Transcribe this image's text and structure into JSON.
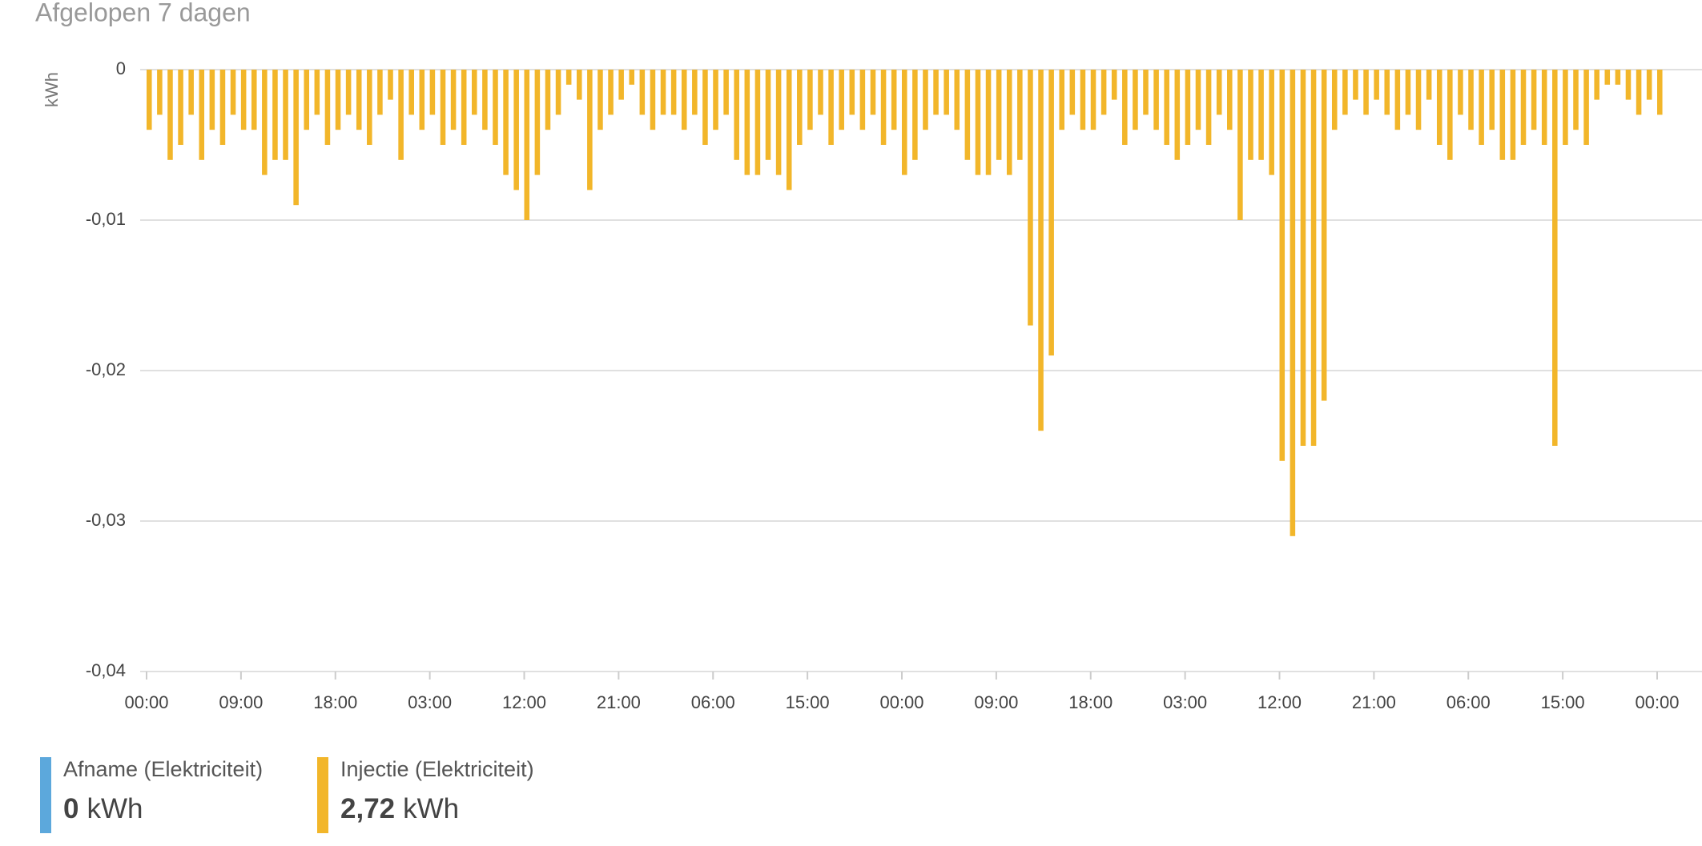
{
  "chart_data": {
    "type": "bar",
    "title": "Afgelopen 7 dagen",
    "y_label": "kWh",
    "ylim": [
      -0.04,
      0
    ],
    "yticks": [
      {
        "value": 0,
        "label": "0"
      },
      {
        "value": -0.01,
        "label": "-0,01"
      },
      {
        "value": -0.02,
        "label": "-0,02"
      },
      {
        "value": -0.03,
        "label": "-0,03"
      },
      {
        "value": -0.04,
        "label": "-0,04"
      }
    ],
    "grid": true,
    "categories": [
      "00:00",
      null,
      null,
      null,
      null,
      null,
      null,
      null,
      null,
      "09:00",
      null,
      null,
      null,
      null,
      null,
      null,
      null,
      null,
      "18:00",
      null,
      null,
      null,
      null,
      null,
      null,
      null,
      null,
      "03:00",
      null,
      null,
      null,
      null,
      null,
      null,
      null,
      null,
      "12:00",
      null,
      null,
      null,
      null,
      null,
      null,
      null,
      null,
      "21:00",
      null,
      null,
      null,
      null,
      null,
      null,
      null,
      null,
      "06:00",
      null,
      null,
      null,
      null,
      null,
      null,
      null,
      null,
      "15:00",
      null,
      null,
      null,
      null,
      null,
      null,
      null,
      null,
      "00:00",
      null,
      null,
      null,
      null,
      null,
      null,
      null,
      null,
      "09:00",
      null,
      null,
      null,
      null,
      null,
      null,
      null,
      null,
      "18:00",
      null,
      null,
      null,
      null,
      null,
      null,
      null,
      null,
      "03:00",
      null,
      null,
      null,
      null,
      null,
      null,
      null,
      null,
      "12:00",
      null,
      null,
      null,
      null,
      null,
      null,
      null,
      null,
      "21:00",
      null,
      null,
      null,
      null,
      null,
      null,
      null,
      null,
      "06:00",
      null,
      null,
      null,
      null,
      null,
      null,
      null,
      null,
      "15:00",
      null,
      null,
      null,
      null,
      null,
      null,
      null,
      null,
      "00:00"
    ],
    "series": [
      {
        "name": "Afname (Elektriciteit)",
        "color": "#5ca8dc",
        "total": 0,
        "unit": "kWh"
      },
      {
        "name": "Injectie (Elektriciteit)",
        "color": "#f2b62a",
        "total": {
          "value": 2.72,
          "label": "2,72"
        },
        "unit": "kWh",
        "values": [
          -0.004,
          -0.003,
          -0.006,
          -0.005,
          -0.003,
          -0.006,
          -0.004,
          -0.005,
          -0.003,
          -0.004,
          -0.004,
          -0.007,
          -0.006,
          -0.006,
          -0.009,
          -0.004,
          -0.003,
          -0.005,
          -0.004,
          -0.003,
          -0.004,
          -0.005,
          -0.003,
          -0.002,
          -0.006,
          -0.003,
          -0.004,
          -0.003,
          -0.005,
          -0.004,
          -0.005,
          -0.003,
          -0.004,
          -0.005,
          -0.007,
          -0.008,
          -0.01,
          -0.007,
          -0.004,
          -0.003,
          -0.001,
          -0.002,
          -0.008,
          -0.004,
          -0.003,
          -0.002,
          -0.001,
          -0.003,
          -0.004,
          -0.003,
          -0.003,
          -0.004,
          -0.003,
          -0.005,
          -0.004,
          -0.003,
          -0.006,
          -0.007,
          -0.007,
          -0.006,
          -0.007,
          -0.008,
          -0.005,
          -0.004,
          -0.003,
          -0.005,
          -0.004,
          -0.003,
          -0.004,
          -0.003,
          -0.005,
          -0.004,
          -0.007,
          -0.006,
          -0.004,
          -0.003,
          -0.003,
          -0.004,
          -0.006,
          -0.007,
          -0.007,
          -0.006,
          -0.007,
          -0.006,
          -0.017,
          -0.024,
          -0.019,
          -0.004,
          -0.003,
          -0.004,
          -0.004,
          -0.003,
          -0.002,
          -0.005,
          -0.004,
          -0.003,
          -0.004,
          -0.005,
          -0.006,
          -0.005,
          -0.004,
          -0.005,
          -0.003,
          -0.004,
          -0.01,
          -0.006,
          -0.006,
          -0.007,
          -0.026,
          -0.031,
          -0.025,
          -0.025,
          -0.022,
          -0.004,
          -0.003,
          -0.002,
          -0.003,
          -0.002,
          -0.003,
          -0.004,
          -0.003,
          -0.004,
          -0.002,
          -0.005,
          -0.006,
          -0.003,
          -0.004,
          -0.005,
          -0.004,
          -0.006,
          -0.006,
          -0.005,
          -0.004,
          -0.005,
          -0.025,
          -0.005,
          -0.004,
          -0.005,
          -0.002,
          -0.001,
          -0.001,
          -0.002,
          -0.003,
          -0.002,
          -0.003
        ]
      }
    ]
  }
}
